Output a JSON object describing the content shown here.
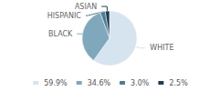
{
  "chart_data": {
    "type": "pie",
    "categories": [
      "WHITE",
      "BLACK",
      "HISPANIC",
      "ASIAN"
    ],
    "values": [
      59.9,
      34.6,
      3.0,
      2.5
    ],
    "value_labels": [
      "59.9%",
      "34.6%",
      "3.0%",
      "2.5%"
    ],
    "colors": [
      "#d6e4f0",
      "#7fa8bc",
      "#4d7d96",
      "#1e3d52"
    ],
    "legend": "bottom"
  }
}
